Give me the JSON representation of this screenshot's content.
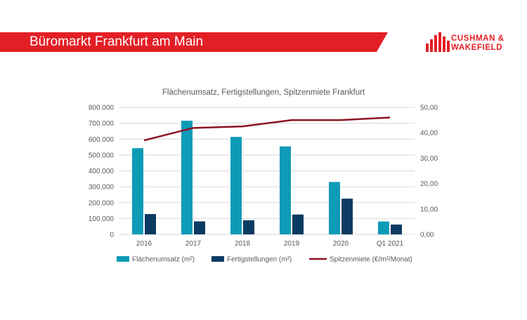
{
  "header": {
    "title": "Büromarkt Frankfurt am Main",
    "brand_line1": "CUSHMAN &",
    "brand_line2": "WAKEFIELD",
    "brand_color": "#e31f26"
  },
  "colors": {
    "flaechenumsatz": "#0e9bb8",
    "fertigstellungen": "#0b3b63",
    "spitzenmiete": "#8c1221",
    "grid": "#d9d9d9",
    "text": "#595959"
  },
  "chart_data": {
    "type": "bar",
    "title": "Flächenumsatz, Fertigstellungen, Spitzenmiete Frankfurt",
    "categories": [
      "2016",
      "2017",
      "2018",
      "2019",
      "2020",
      "Q1 2021"
    ],
    "series": [
      {
        "name": "Flächenumsatz (m²)",
        "type": "bar",
        "axis": "left",
        "values": [
          543000,
          716000,
          614000,
          554000,
          330000,
          81000
        ]
      },
      {
        "name": "Fertigstellungen (m²)",
        "type": "bar",
        "axis": "left",
        "values": [
          128000,
          82000,
          89000,
          125000,
          225000,
          62000
        ]
      },
      {
        "name": "Spitzenmiete (€/m²/Monat)",
        "type": "line",
        "axis": "right",
        "values": [
          37.0,
          41.9,
          42.5,
          45.0,
          45.0,
          46.0
        ]
      }
    ],
    "ylim_left": [
      0,
      800000
    ],
    "ylim_right": [
      0,
      50
    ],
    "yticks_left": [
      "0",
      "100.000",
      "200.000",
      "300.000",
      "400.000",
      "500.000",
      "600.000",
      "700.000",
      "800.000"
    ],
    "yticks_right": [
      "0,00",
      "10,00",
      "20,00",
      "30,00",
      "40,00",
      "50,00"
    ],
    "grid": true,
    "legend": "bottom"
  }
}
